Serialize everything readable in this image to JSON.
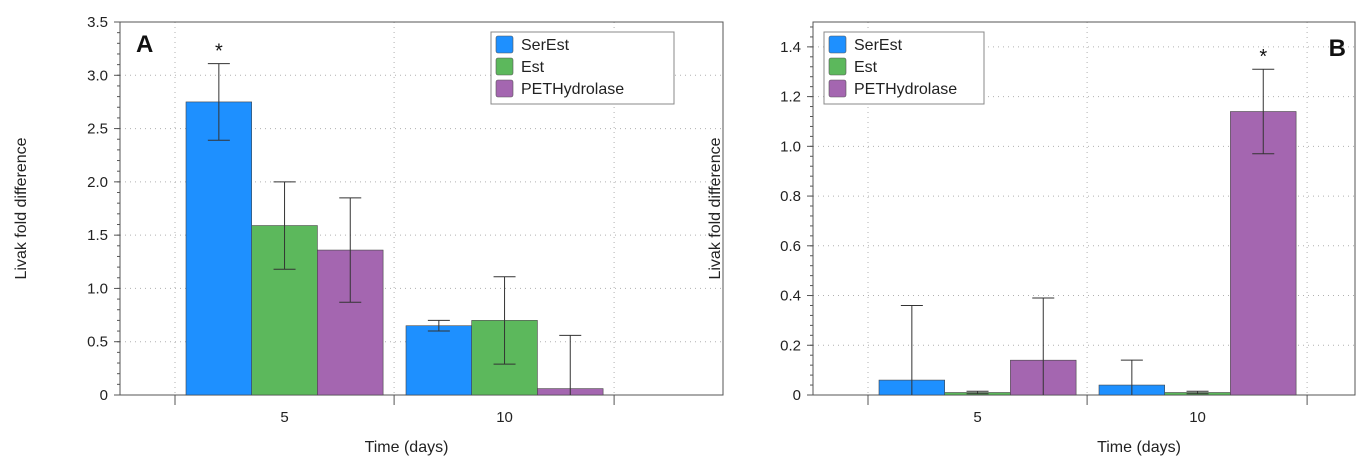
{
  "colors": {
    "SerEst": "#1e90ff",
    "Est": "#5cb85c",
    "PETHydrolase": "#a466b0",
    "axis": "#555555",
    "grid": "#b0b0b0"
  },
  "chart_data": [
    {
      "type": "bar",
      "panel_label": "A",
      "xlabel": "Time (days)",
      "ylabel": "Livak fold difference",
      "categories": [
        "5",
        "10"
      ],
      "ylim": [
        0,
        3.5
      ],
      "yticks": [
        "0",
        "0.5",
        "1.0",
        "1.5",
        "2.0",
        "2.5",
        "3.0",
        "3.5"
      ],
      "ytick_values": [
        0,
        0.5,
        1.0,
        1.5,
        2.0,
        2.5,
        3.0,
        3.5
      ],
      "grid": true,
      "legend_position": "top-right",
      "series": [
        {
          "name": "SerEst",
          "values": [
            2.75,
            0.65
          ],
          "errors": [
            0.36,
            0.05
          ]
        },
        {
          "name": "Est",
          "values": [
            1.59,
            0.7
          ],
          "errors": [
            0.41,
            0.41
          ]
        },
        {
          "name": "PETHydrolase",
          "values": [
            1.36,
            0.06
          ],
          "errors": [
            0.49,
            0.5
          ]
        }
      ],
      "annotations": [
        {
          "text": "*",
          "series": "SerEst",
          "category": "5"
        }
      ]
    },
    {
      "type": "bar",
      "panel_label": "B",
      "xlabel": "Time (days)",
      "ylabel": "Livak fold difference",
      "categories": [
        "5",
        "10"
      ],
      "ylim": [
        0,
        1.5
      ],
      "yticks": [
        "0",
        "0.2",
        "0.4",
        "0.6",
        "0.8",
        "1.0",
        "1.2",
        "1.4"
      ],
      "ytick_values": [
        0,
        0.2,
        0.4,
        0.6,
        0.8,
        1.0,
        1.2,
        1.4
      ],
      "grid": true,
      "legend_position": "top-left",
      "series": [
        {
          "name": "SerEst",
          "values": [
            0.06,
            0.04
          ],
          "errors": [
            0.3,
            0.1
          ]
        },
        {
          "name": "Est",
          "values": [
            0.01,
            0.01
          ],
          "errors": [
            0.005,
            0.005
          ]
        },
        {
          "name": "PETHydrolase",
          "values": [
            0.14,
            1.14
          ],
          "errors": [
            0.25,
            0.17
          ]
        }
      ],
      "annotations": [
        {
          "text": "*",
          "series": "PETHydrolase",
          "category": "10"
        }
      ]
    }
  ]
}
